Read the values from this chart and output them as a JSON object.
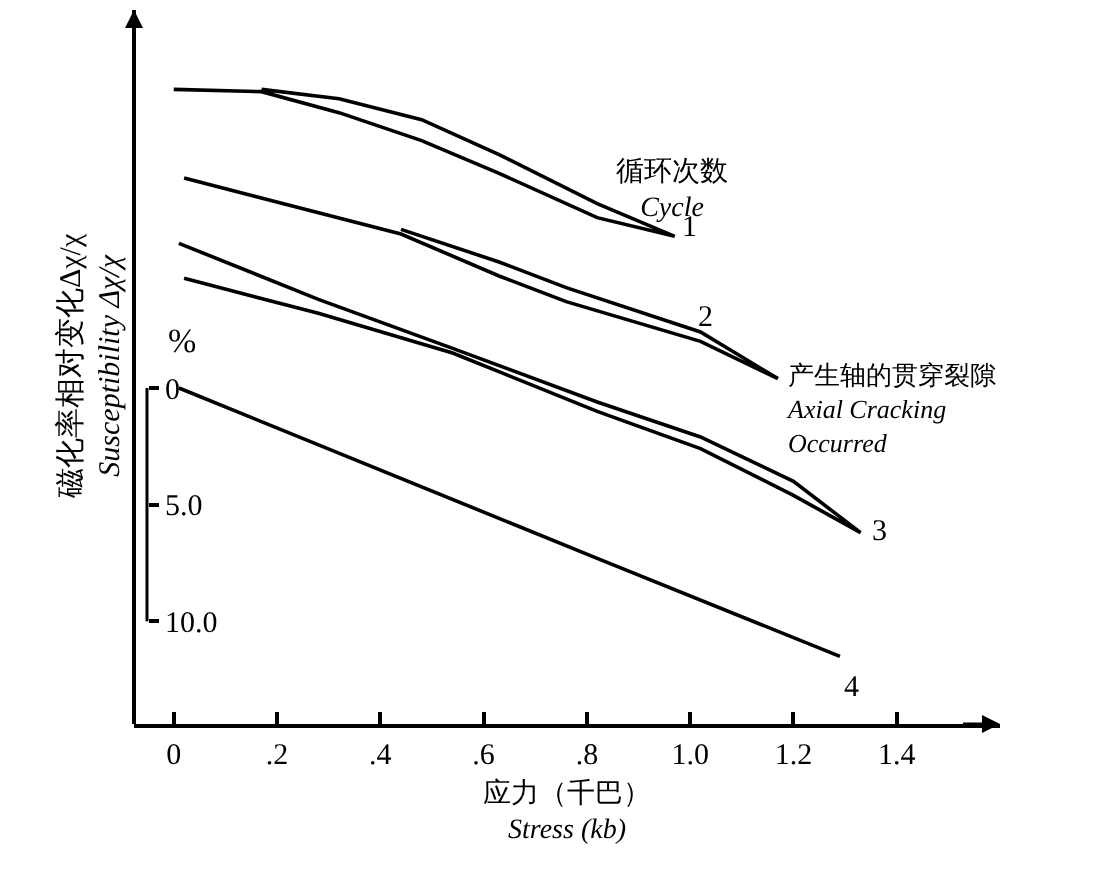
{
  "chart_data": {
    "type": "line",
    "xlabel": "应力（千巴）\nStress (kb)",
    "ylabel": "磁化率相对变化Δχ/χ\nSusceptibility Δχ/χ",
    "legend_title": "循环次数\nCycle",
    "annotations": [
      "%",
      {
        "text": "产生轴的贯穿裂隙\nAxial Cracking\nOccurred",
        "x": 1.2,
        "y": 4.0
      }
    ],
    "xlim": [
      -0.077,
      1.6
    ],
    "xticks": [
      0,
      {
        "value": 0.2,
        "label": ".2"
      },
      {
        "value": 0.4,
        "label": ".4"
      },
      {
        "value": 0.6,
        "label": ".6"
      },
      {
        "value": 0.8,
        "label": ".8"
      },
      {
        "value": 1,
        "label": "1.0"
      },
      {
        "value": 1.2,
        "label": "1.2"
      },
      {
        "value": 1.4,
        "label": "1.4"
      }
    ],
    "ylim": [
      14.4,
      -16.2
    ],
    "yticks": [
      0,
      {
        "value": 5,
        "label": "5.0"
      },
      {
        "value": 10,
        "label": "10.0"
      }
    ],
    "grid": false,
    "legend": false,
    "marker": "none",
    "line_style": "solid",
    "series": [
      {
        "name": "1",
        "color": "#000000",
        "x": [
          0,
          0.17,
          0.32,
          0.48,
          0.63,
          0.82,
          0.97,
          0.82,
          0.63,
          0.48,
          0.32,
          0.17
        ],
        "values": [
          -12.8,
          -12.7,
          -11.8,
          -10.6,
          -9.2,
          -7.3,
          -6.5,
          -7.9,
          -10.0,
          -11.5,
          -12.4,
          -12.8
        ]
      },
      {
        "name": "2",
        "color": "#000000",
        "x": [
          0.02,
          0.44,
          0.63,
          0.76,
          1.02,
          1.17,
          1.02,
          0.76,
          0.63,
          0.44
        ],
        "values": [
          -9.0,
          -6.6,
          -4.8,
          -3.7,
          -2.0,
          -0.4,
          -2.4,
          -4.3,
          -5.4,
          -6.8
        ]
      },
      {
        "name": "3",
        "color": "#000000",
        "x": [
          0.01,
          0.28,
          0.54,
          0.82,
          1.02,
          1.2,
          1.33,
          1.2,
          1.02,
          0.82,
          0.54,
          0.28,
          0.02
        ],
        "values": [
          -6.2,
          -3.8,
          -1.7,
          0.6,
          2.1,
          4.0,
          6.2,
          4.6,
          2.6,
          1.0,
          -1.5,
          -3.2,
          -4.7
        ]
      },
      {
        "name": "4",
        "color": "#000000",
        "x": [
          0.01,
          0.82,
          1.29
        ],
        "values": [
          0,
          7.3,
          11.5
        ]
      }
    ]
  }
}
